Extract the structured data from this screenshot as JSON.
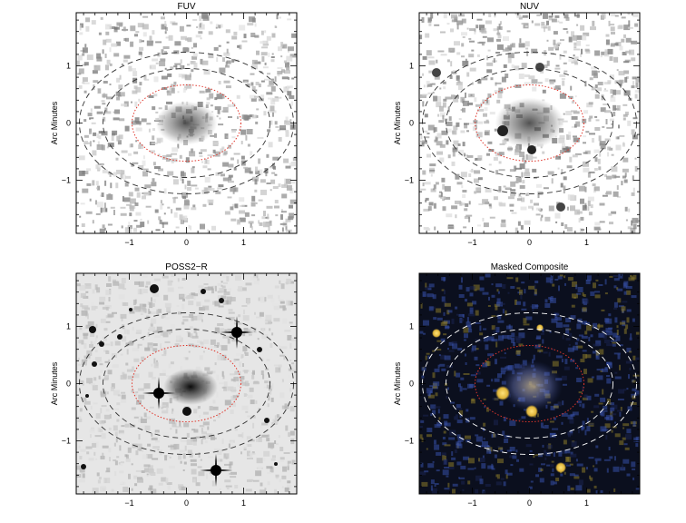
{
  "figure": {
    "panels": [
      {
        "id": "fuv",
        "title": "FUV",
        "ylabel": "Arc Minutes",
        "xticks": [
          "−1",
          "0",
          "1"
        ],
        "yticks": [
          "1",
          "0",
          "−1"
        ],
        "style": "grayscale-noise",
        "background": "#ffffff"
      },
      {
        "id": "nuv",
        "title": "NUV",
        "ylabel": "Arc Minutes",
        "xticks": [
          "−1",
          "0",
          "1"
        ],
        "yticks": [
          "1",
          "0",
          "−1"
        ],
        "style": "grayscale-noise",
        "background": "#ffffff"
      },
      {
        "id": "poss2r",
        "title": "POSS2−R",
        "ylabel": "Arc Minutes",
        "xticks": [
          "−1",
          "0",
          "1"
        ],
        "yticks": [
          "1",
          "0",
          "−1"
        ],
        "style": "optical",
        "background": "#e6e6e6"
      },
      {
        "id": "composite",
        "title": "Masked Composite",
        "ylabel": "Arc Minutes",
        "xticks": [
          "−1",
          "0",
          "1"
        ],
        "yticks": [
          "1",
          "0",
          "−1"
        ],
        "style": "color-composite",
        "background": "#0b0f1e"
      }
    ],
    "colors": {
      "inner_ellipse": "#e0362b",
      "outer_ellipse_light": "#333333",
      "outer_ellipse_dark": "#ffffff",
      "composite_star": "#e8c23a",
      "composite_noise_blue": "#3650a8",
      "composite_noise_yellow": "#8a7a2a"
    }
  }
}
